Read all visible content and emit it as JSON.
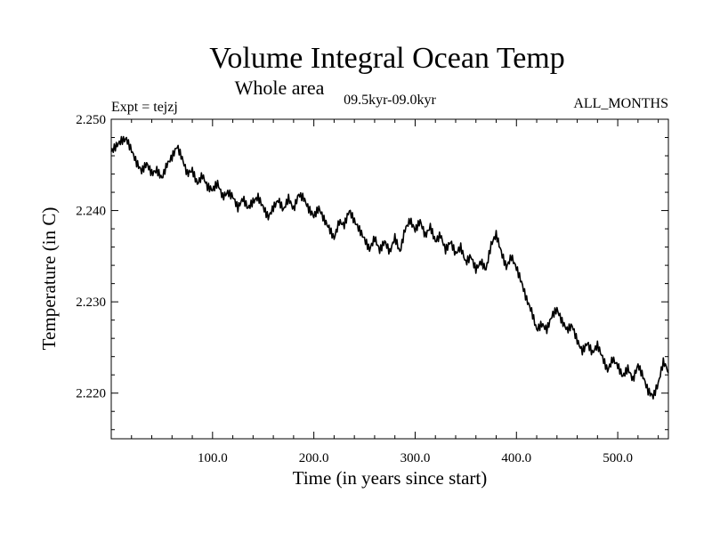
{
  "chart_data": {
    "type": "line",
    "title": "Volume Integral Ocean Temp",
    "subtitle": "Whole area",
    "period": "09.5kyr-09.0kyr",
    "experiment": "Expt = tejzj",
    "months": "ALL_MONTHS",
    "xlabel": "Time (in years since start)",
    "ylabel": "Temperature (in C)",
    "xlim": [
      0,
      550
    ],
    "ylim": [
      2.215,
      2.25
    ],
    "x_ticks": [
      {
        "value": 100,
        "label": "100.0"
      },
      {
        "value": 200,
        "label": "200.0"
      },
      {
        "value": 300,
        "label": "300.0"
      },
      {
        "value": 400,
        "label": "400.0"
      },
      {
        "value": 500,
        "label": "500.0"
      }
    ],
    "y_ticks": [
      {
        "value": 2.22,
        "label": "2.220"
      },
      {
        "value": 2.23,
        "label": "2.230"
      },
      {
        "value": 2.24,
        "label": "2.240"
      },
      {
        "value": 2.25,
        "label": "2.250"
      }
    ],
    "grid": false,
    "series": [
      {
        "name": "Volume Integral Ocean Temp",
        "color": "#000000",
        "x": [
          0,
          5,
          10,
          15,
          20,
          25,
          30,
          35,
          40,
          45,
          50,
          55,
          60,
          65,
          70,
          75,
          80,
          85,
          90,
          95,
          100,
          105,
          110,
          115,
          120,
          125,
          130,
          135,
          140,
          145,
          150,
          155,
          160,
          165,
          170,
          175,
          180,
          185,
          190,
          195,
          200,
          205,
          210,
          215,
          220,
          225,
          230,
          235,
          240,
          245,
          250,
          255,
          260,
          265,
          270,
          275,
          280,
          285,
          290,
          295,
          300,
          305,
          310,
          315,
          320,
          325,
          330,
          335,
          340,
          345,
          350,
          355,
          360,
          365,
          370,
          375,
          380,
          385,
          390,
          395,
          400,
          405,
          410,
          415,
          420,
          425,
          430,
          435,
          440,
          445,
          450,
          455,
          460,
          465,
          470,
          475,
          480,
          485,
          490,
          495,
          500,
          505,
          510,
          515,
          520,
          525,
          530,
          535,
          540,
          545,
          550
        ],
        "y": [
          2.2462,
          2.247,
          2.2478,
          2.2481,
          2.2468,
          2.2452,
          2.2441,
          2.2449,
          2.244,
          2.2446,
          2.2438,
          2.2452,
          2.2458,
          2.2468,
          2.2455,
          2.244,
          2.2446,
          2.2432,
          2.244,
          2.2425,
          2.242,
          2.2428,
          2.2415,
          2.2422,
          2.2418,
          2.2404,
          2.2412,
          2.24,
          2.2408,
          2.2415,
          2.2406,
          2.2395,
          2.2404,
          2.241,
          2.2398,
          2.2412,
          2.2402,
          2.242,
          2.2416,
          2.2402,
          2.2392,
          2.24,
          2.2389,
          2.2382,
          2.2372,
          2.239,
          2.2384,
          2.2398,
          2.2386,
          2.2378,
          2.237,
          2.236,
          2.2372,
          2.2356,
          2.2364,
          2.2352,
          2.237,
          2.2356,
          2.2382,
          2.2391,
          2.2378,
          2.2386,
          2.237,
          2.2382,
          2.2368,
          2.2376,
          2.2358,
          2.2365,
          2.235,
          2.2358,
          2.2343,
          2.2352,
          2.2338,
          2.2345,
          2.2334,
          2.236,
          2.2372,
          2.2355,
          2.234,
          2.2352,
          2.2338,
          2.232,
          2.23,
          2.2288,
          2.227,
          2.2278,
          2.2272,
          2.2285,
          2.229,
          2.2276,
          2.2268,
          2.2275,
          2.226,
          2.2248,
          2.2255,
          2.2242,
          2.225,
          2.2238,
          2.2226,
          2.224,
          2.2232,
          2.2218,
          2.2225,
          2.2212,
          2.223,
          2.222,
          2.2205,
          2.2198,
          2.221,
          2.2232,
          2.2222
        ]
      }
    ]
  }
}
